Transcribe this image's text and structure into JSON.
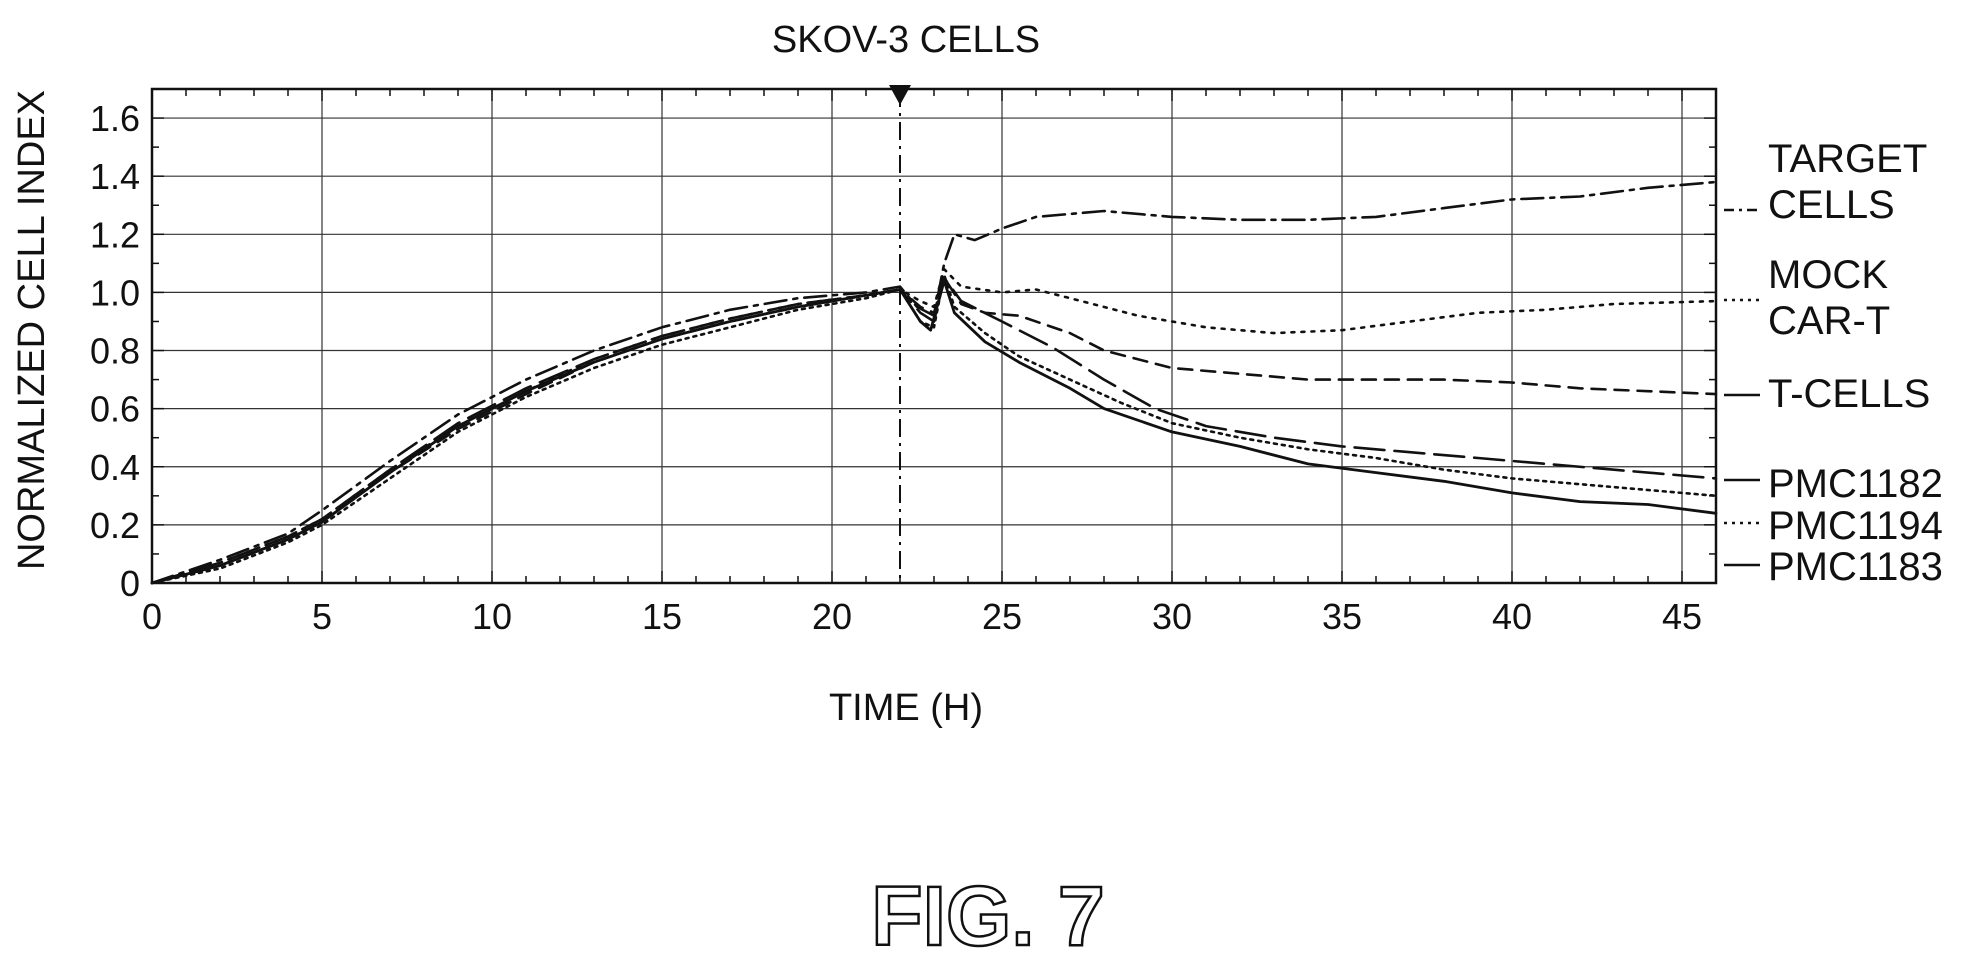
{
  "figure_label": "FIG. 7",
  "chart_data": {
    "type": "line",
    "title": "SKOV-3 CELLS",
    "xlabel": "TIME (H)",
    "ylabel": "NORMALIZED CELL INDEX",
    "xlim": [
      0,
      46
    ],
    "ylim": [
      0,
      1.7
    ],
    "x_ticks": [
      "0",
      "5",
      "10",
      "15",
      "20",
      "25",
      "30",
      "35",
      "40",
      "45"
    ],
    "y_ticks": [
      "0",
      "0.2",
      "0.4",
      "0.6",
      "0.8",
      "1.0",
      "1.2",
      "1.4",
      "1.6"
    ],
    "grid": true,
    "treatment_time": 22,
    "legend_placement": "right",
    "series": [
      {
        "name": "TARGET CELLS",
        "style": "dash-dot",
        "label_lines": [
          "TARGET",
          "CELLS"
        ],
        "points": [
          [
            0,
            0
          ],
          [
            2,
            0.08
          ],
          [
            4,
            0.17
          ],
          [
            5,
            0.25
          ],
          [
            7,
            0.42
          ],
          [
            9,
            0.58
          ],
          [
            11,
            0.7
          ],
          [
            13,
            0.8
          ],
          [
            15,
            0.88
          ],
          [
            17,
            0.94
          ],
          [
            19,
            0.98
          ],
          [
            21,
            1.0
          ],
          [
            22,
            1.02
          ],
          [
            22.5,
            0.95
          ],
          [
            23,
            0.92
          ],
          [
            23.3,
            1.1
          ],
          [
            23.6,
            1.2
          ],
          [
            24.2,
            1.18
          ],
          [
            25,
            1.22
          ],
          [
            26,
            1.26
          ],
          [
            28,
            1.28
          ],
          [
            30,
            1.26
          ],
          [
            32,
            1.25
          ],
          [
            34,
            1.25
          ],
          [
            36,
            1.26
          ],
          [
            38,
            1.29
          ],
          [
            40,
            1.32
          ],
          [
            42,
            1.33
          ],
          [
            44,
            1.36
          ],
          [
            46,
            1.38
          ]
        ]
      },
      {
        "name": "MOCK CAR-T",
        "style": "dotted-fine",
        "label_lines": [
          "MOCK",
          "CAR-T"
        ],
        "points": [
          [
            0,
            0
          ],
          [
            2,
            0.07
          ],
          [
            4,
            0.16
          ],
          [
            5,
            0.22
          ],
          [
            7,
            0.39
          ],
          [
            9,
            0.54
          ],
          [
            11,
            0.66
          ],
          [
            13,
            0.77
          ],
          [
            15,
            0.85
          ],
          [
            17,
            0.91
          ],
          [
            19,
            0.96
          ],
          [
            21,
            0.99
          ],
          [
            22,
            1.01
          ],
          [
            22.6,
            0.97
          ],
          [
            23,
            0.95
          ],
          [
            23.3,
            1.08
          ],
          [
            23.8,
            1.02
          ],
          [
            25,
            1.0
          ],
          [
            26,
            1.01
          ],
          [
            27,
            0.98
          ],
          [
            29,
            0.92
          ],
          [
            31,
            0.88
          ],
          [
            33,
            0.86
          ],
          [
            35,
            0.87
          ],
          [
            37,
            0.9
          ],
          [
            39,
            0.93
          ],
          [
            41,
            0.94
          ],
          [
            43,
            0.96
          ],
          [
            46,
            0.97
          ]
        ]
      },
      {
        "name": "T-CELLS",
        "style": "dashed",
        "label_lines": [
          "T-CELLS"
        ],
        "points": [
          [
            0,
            0
          ],
          [
            2,
            0.06
          ],
          [
            4,
            0.15
          ],
          [
            5,
            0.21
          ],
          [
            7,
            0.38
          ],
          [
            9,
            0.53
          ],
          [
            11,
            0.65
          ],
          [
            13,
            0.76
          ],
          [
            15,
            0.84
          ],
          [
            17,
            0.9
          ],
          [
            19,
            0.95
          ],
          [
            21,
            0.99
          ],
          [
            22,
            1.01
          ],
          [
            22.6,
            0.95
          ],
          [
            23,
            0.93
          ],
          [
            23.3,
            1.05
          ],
          [
            23.8,
            0.96
          ],
          [
            24.5,
            0.93
          ],
          [
            25.5,
            0.92
          ],
          [
            27,
            0.86
          ],
          [
            28,
            0.8
          ],
          [
            30,
            0.74
          ],
          [
            32,
            0.72
          ],
          [
            34,
            0.7
          ],
          [
            36,
            0.7
          ],
          [
            38,
            0.7
          ],
          [
            40,
            0.69
          ],
          [
            42,
            0.67
          ],
          [
            44,
            0.66
          ],
          [
            46,
            0.65
          ]
        ]
      },
      {
        "name": "PMC1182",
        "style": "long-dash",
        "label_lines": [
          "PMC1182"
        ],
        "points": [
          [
            0,
            0
          ],
          [
            2,
            0.07
          ],
          [
            4,
            0.16
          ],
          [
            5,
            0.22
          ],
          [
            7,
            0.39
          ],
          [
            9,
            0.55
          ],
          [
            11,
            0.67
          ],
          [
            13,
            0.77
          ],
          [
            15,
            0.85
          ],
          [
            17,
            0.91
          ],
          [
            19,
            0.96
          ],
          [
            21,
            0.99
          ],
          [
            22,
            1.01
          ],
          [
            22.6,
            0.93
          ],
          [
            23,
            0.9
          ],
          [
            23.3,
            1.05
          ],
          [
            23.8,
            0.97
          ],
          [
            25,
            0.9
          ],
          [
            26.5,
            0.81
          ],
          [
            28,
            0.7
          ],
          [
            29.5,
            0.6
          ],
          [
            31,
            0.54
          ],
          [
            33,
            0.5
          ],
          [
            35,
            0.47
          ],
          [
            37,
            0.45
          ],
          [
            39,
            0.43
          ],
          [
            41,
            0.41
          ],
          [
            43,
            0.39
          ],
          [
            46,
            0.36
          ]
        ]
      },
      {
        "name": "PMC1194",
        "style": "dotted",
        "label_lines": [
          "PMC1194"
        ],
        "points": [
          [
            0,
            0
          ],
          [
            2,
            0.05
          ],
          [
            4,
            0.14
          ],
          [
            5,
            0.2
          ],
          [
            7,
            0.36
          ],
          [
            9,
            0.52
          ],
          [
            11,
            0.64
          ],
          [
            13,
            0.74
          ],
          [
            15,
            0.82
          ],
          [
            17,
            0.88
          ],
          [
            19,
            0.94
          ],
          [
            21,
            0.98
          ],
          [
            22,
            1.01
          ],
          [
            22.6,
            0.9
          ],
          [
            23,
            0.88
          ],
          [
            23.3,
            1.06
          ],
          [
            23.6,
            0.95
          ],
          [
            24.5,
            0.86
          ],
          [
            25.5,
            0.78
          ],
          [
            27,
            0.7
          ],
          [
            28.5,
            0.62
          ],
          [
            30,
            0.55
          ],
          [
            32,
            0.5
          ],
          [
            34,
            0.46
          ],
          [
            36,
            0.43
          ],
          [
            38,
            0.39
          ],
          [
            40,
            0.36
          ],
          [
            42,
            0.34
          ],
          [
            44,
            0.32
          ],
          [
            46,
            0.3
          ]
        ]
      },
      {
        "name": "PMC1183",
        "style": "solid",
        "label_lines": [
          "PMC1183"
        ],
        "points": [
          [
            0,
            0
          ],
          [
            2,
            0.06
          ],
          [
            4,
            0.15
          ],
          [
            5,
            0.21
          ],
          [
            7,
            0.38
          ],
          [
            9,
            0.54
          ],
          [
            11,
            0.66
          ],
          [
            13,
            0.76
          ],
          [
            15,
            0.84
          ],
          [
            17,
            0.9
          ],
          [
            19,
            0.95
          ],
          [
            21,
            0.99
          ],
          [
            22,
            1.01
          ],
          [
            22.6,
            0.9
          ],
          [
            22.9,
            0.87
          ],
          [
            23.3,
            1.04
          ],
          [
            23.6,
            0.93
          ],
          [
            24.5,
            0.83
          ],
          [
            25.5,
            0.76
          ],
          [
            27,
            0.67
          ],
          [
            28,
            0.6
          ],
          [
            30,
            0.52
          ],
          [
            32,
            0.47
          ],
          [
            34,
            0.41
          ],
          [
            36,
            0.38
          ],
          [
            38,
            0.35
          ],
          [
            40,
            0.31
          ],
          [
            42,
            0.28
          ],
          [
            44,
            0.27
          ],
          [
            46,
            0.24
          ]
        ]
      }
    ]
  }
}
